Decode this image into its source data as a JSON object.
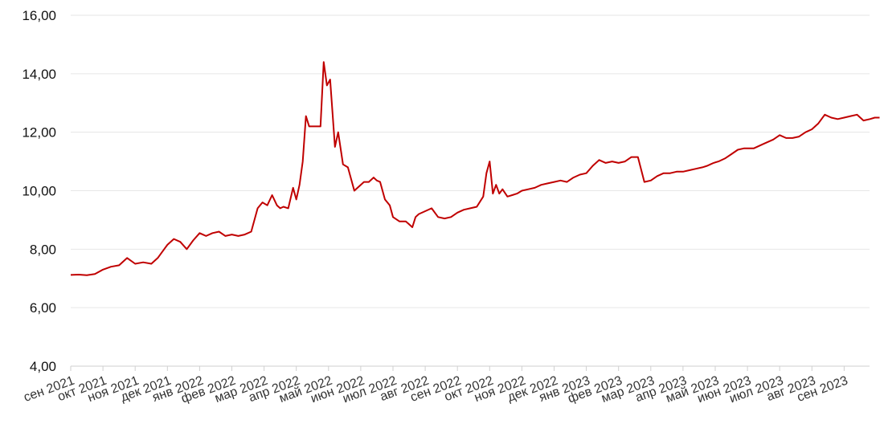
{
  "chart_data": {
    "type": "line",
    "title": "",
    "xlabel": "",
    "ylabel": "",
    "ylim": [
      4,
      16
    ],
    "y_ticks": [
      "4,00",
      "6,00",
      "8,00",
      "10,00",
      "12,00",
      "14,00",
      "16,00"
    ],
    "y_tick_values": [
      4,
      6,
      8,
      10,
      12,
      14,
      16
    ],
    "x_tick_labels": [
      "сен 2021",
      "окт 2021",
      "ноя 2021",
      "дек 2021",
      "янв 2022",
      "фев 2022",
      "мар 2022",
      "апр 2022",
      "май 2022",
      "июн 2022",
      "июл 2022",
      "авг 2022",
      "сен 2022",
      "окт 2022",
      "ноя 2022",
      "дек 2022",
      "янв 2023",
      "фев 2023",
      "мар 2023",
      "апр 2023",
      "май 2023",
      "июн 2023",
      "июл 2023",
      "авг 2023",
      "сен 2023"
    ],
    "grid": true,
    "legend": "none",
    "colors": {
      "line": "#c00000",
      "grid": "#e6e6e6",
      "text": "#111111"
    },
    "series": [
      {
        "x_month_index": [
          0.0,
          0.25,
          0.5,
          0.75,
          1.0,
          1.25,
          1.5,
          1.75,
          2.0,
          2.25,
          2.5,
          2.7,
          2.9,
          3.0,
          3.2,
          3.4,
          3.6,
          3.8,
          4.0,
          4.2,
          4.4,
          4.6,
          4.8,
          5.0,
          5.2,
          5.4,
          5.6,
          5.8,
          5.95,
          6.1,
          6.25,
          6.4,
          6.5,
          6.6,
          6.75,
          6.9,
          7.0,
          7.1,
          7.2,
          7.3,
          7.4,
          7.5,
          7.6,
          7.75,
          7.85,
          7.95,
          8.05,
          8.2,
          8.3,
          8.45,
          8.6,
          8.8,
          9.0,
          9.1,
          9.25,
          9.4,
          9.5,
          9.6,
          9.75,
          9.9,
          10.0,
          10.2,
          10.4,
          10.6,
          10.7,
          10.8,
          11.0,
          11.2,
          11.4,
          11.6,
          11.8,
          12.0,
          12.2,
          12.4,
          12.6,
          12.8,
          12.9,
          13.0,
          13.1,
          13.2,
          13.3,
          13.4,
          13.55,
          13.7,
          13.85,
          14.0,
          14.2,
          14.4,
          14.6,
          14.8,
          15.0,
          15.2,
          15.4,
          15.6,
          15.8,
          16.0,
          16.2,
          16.4,
          16.6,
          16.8,
          17.0,
          17.2,
          17.4,
          17.6,
          17.8,
          18.0,
          18.2,
          18.4,
          18.6,
          18.8,
          19.0,
          19.2,
          19.4,
          19.6,
          19.75,
          19.85,
          19.95,
          20.1,
          20.3,
          20.5,
          20.7,
          20.9,
          21.2,
          21.5,
          21.8,
          22.0,
          22.2,
          22.4,
          22.6,
          22.8,
          23.0,
          23.2,
          23.4,
          23.6,
          23.8,
          24.0,
          24.2,
          24.4,
          24.6,
          24.8,
          24.95,
          25.1,
          25.2,
          25.3
        ],
        "values": [
          7.12,
          7.13,
          7.11,
          7.15,
          7.3,
          7.4,
          7.45,
          7.7,
          7.5,
          7.55,
          7.5,
          7.7,
          8.0,
          8.15,
          8.35,
          8.25,
          8.0,
          8.3,
          8.55,
          8.45,
          8.55,
          8.6,
          8.45,
          8.5,
          8.45,
          8.5,
          8.6,
          9.4,
          9.6,
          9.5,
          9.85,
          9.5,
          9.4,
          9.45,
          9.4,
          10.1,
          9.7,
          10.2,
          11.0,
          12.55,
          12.2,
          12.2,
          12.2,
          12.2,
          14.4,
          13.6,
          13.8,
          11.5,
          12.0,
          10.9,
          10.8,
          10.0,
          10.2,
          10.3,
          10.3,
          10.45,
          10.35,
          10.3,
          9.7,
          9.5,
          9.1,
          8.95,
          8.95,
          8.75,
          9.1,
          9.2,
          9.3,
          9.4,
          9.1,
          9.05,
          9.1,
          9.25,
          9.35,
          9.4,
          9.45,
          9.8,
          10.6,
          11.0,
          9.9,
          10.2,
          9.9,
          10.05,
          9.8,
          9.85,
          9.9,
          10.0,
          10.05,
          10.1,
          10.2,
          10.25,
          10.3,
          10.35,
          10.3,
          10.45,
          10.55,
          10.6,
          10.85,
          11.05,
          10.95,
          11.0,
          10.95,
          11.0,
          11.15,
          11.15,
          10.3,
          10.35,
          10.5,
          10.6,
          10.6,
          10.65,
          10.65,
          10.7,
          10.75,
          10.8,
          10.85,
          10.9,
          10.95,
          11.0,
          11.1,
          11.25,
          11.4,
          11.45,
          11.45,
          11.6,
          11.75,
          11.9,
          11.8,
          11.8,
          11.85,
          12.0,
          12.1,
          12.3,
          12.6,
          12.5,
          12.45,
          12.5,
          12.55,
          12.6,
          12.4,
          12.45,
          12.5,
          12.5
        ]
      }
    ]
  }
}
